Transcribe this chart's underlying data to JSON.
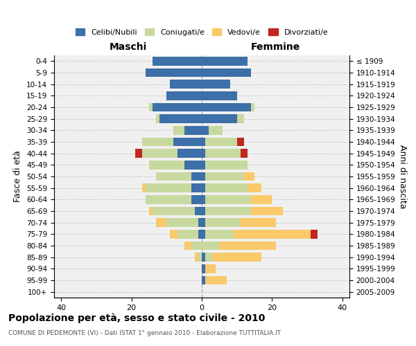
{
  "age_groups": [
    "0-4",
    "5-9",
    "10-14",
    "15-19",
    "20-24",
    "25-29",
    "30-34",
    "35-39",
    "40-44",
    "45-49",
    "50-54",
    "55-59",
    "60-64",
    "65-69",
    "70-74",
    "75-79",
    "80-84",
    "85-89",
    "90-94",
    "95-99",
    "100+"
  ],
  "birth_years": [
    "2005-2009",
    "2000-2004",
    "1995-1999",
    "1990-1994",
    "1985-1989",
    "1980-1984",
    "1975-1979",
    "1970-1974",
    "1965-1969",
    "1960-1964",
    "1955-1959",
    "1950-1954",
    "1945-1949",
    "1940-1944",
    "1935-1939",
    "1930-1934",
    "1925-1929",
    "1920-1924",
    "1915-1919",
    "1910-1914",
    "≤ 1909"
  ],
  "males": {
    "celibi": [
      14,
      16,
      9,
      10,
      14,
      12,
      5,
      8,
      7,
      5,
      3,
      3,
      3,
      2,
      1,
      1,
      0,
      0,
      0,
      0,
      0
    ],
    "coniugati": [
      0,
      0,
      0,
      0,
      1,
      1,
      3,
      9,
      10,
      10,
      10,
      13,
      13,
      12,
      9,
      6,
      3,
      1,
      0,
      0,
      0
    ],
    "vedovi": [
      0,
      0,
      0,
      0,
      0,
      0,
      0,
      0,
      0,
      0,
      0,
      1,
      0,
      1,
      3,
      2,
      2,
      1,
      0,
      0,
      0
    ],
    "divorziati": [
      0,
      0,
      0,
      0,
      0,
      0,
      0,
      0,
      2,
      0,
      0,
      0,
      0,
      0,
      0,
      0,
      0,
      0,
      0,
      0,
      0
    ]
  },
  "females": {
    "nubili": [
      13,
      14,
      8,
      10,
      14,
      10,
      2,
      1,
      1,
      1,
      1,
      1,
      1,
      1,
      1,
      1,
      0,
      1,
      1,
      1,
      0
    ],
    "coniugate": [
      0,
      0,
      0,
      0,
      1,
      2,
      4,
      9,
      10,
      12,
      11,
      12,
      13,
      13,
      10,
      8,
      5,
      2,
      0,
      0,
      0
    ],
    "vedove": [
      0,
      0,
      0,
      0,
      0,
      0,
      0,
      0,
      0,
      0,
      3,
      4,
      6,
      9,
      10,
      22,
      16,
      14,
      3,
      6,
      0
    ],
    "divorziate": [
      0,
      0,
      0,
      0,
      0,
      0,
      0,
      2,
      2,
      0,
      0,
      0,
      0,
      0,
      0,
      2,
      0,
      0,
      0,
      0,
      0
    ]
  },
  "colors": {
    "celibi_nubili": "#3d6fa8",
    "coniugati": "#c8d9a0",
    "vedovi": "#f9c96a",
    "divorziati": "#c0271f"
  },
  "xlim": 42,
  "title": "Popolazione per età, sesso e stato civile - 2010",
  "subtitle": "COMUNE DI PEDEMONTE (VI) - Dati ISTAT 1° gennaio 2010 - Elaborazione TUTTITALIA.IT",
  "ylabel_left": "Fasce di età",
  "ylabel_right": "Anni di nascita",
  "xlabel_maschi": "Maschi",
  "xlabel_femmine": "Femmine"
}
